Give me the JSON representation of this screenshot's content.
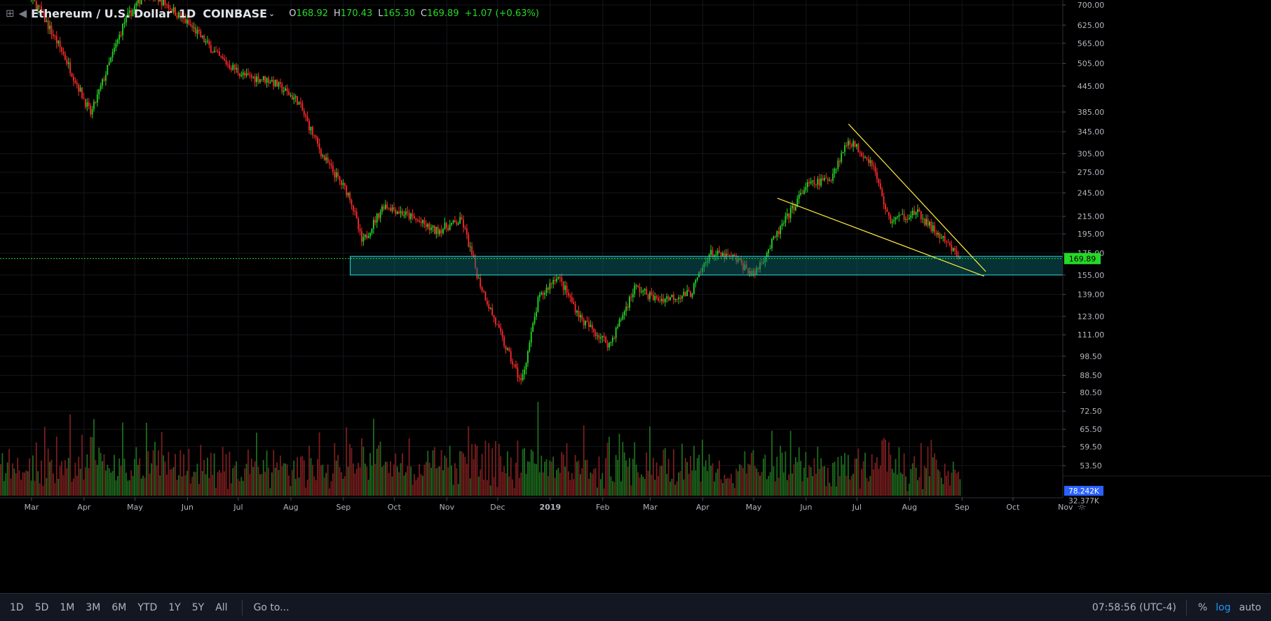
{
  "header": {
    "symbol": "Ethereum / U.S. Dollar",
    "interval": "1D",
    "exchange": "COINBASE",
    "open_label": "O",
    "open": "168.92",
    "high_label": "H",
    "high": "170.43",
    "low_label": "L",
    "low": "165.30",
    "close_label": "C",
    "close": "169.89",
    "change": "+1.07 (+0.63%)",
    "icons": [
      "expand-square-icon",
      "collapse-arrow-icon",
      "chevron-down-icon"
    ]
  },
  "chart_data": {
    "type": "candlestick",
    "y_scale": "log",
    "y_ticks": [
      "700.00",
      "625.00",
      "565.00",
      "505.00",
      "445.00",
      "385.00",
      "345.00",
      "305.00",
      "275.00",
      "245.00",
      "215.00",
      "195.00",
      "175.00",
      "155.00",
      "139.00",
      "123.00",
      "111.00",
      "98.50",
      "88.50",
      "80.50",
      "72.50",
      "65.50",
      "59.50",
      "53.50"
    ],
    "x_ticks": [
      "Mar",
      "Apr",
      "May",
      "Jun",
      "Jul",
      "Aug",
      "Sep",
      "Oct",
      "Nov",
      "Dec",
      "2019",
      "Feb",
      "Mar",
      "Apr",
      "May",
      "Jun",
      "Jul",
      "Aug",
      "Sep",
      "Oct",
      "Nov"
    ],
    "last_price_label": "169.89",
    "volume_label": "78.242K",
    "volume_label_2": "32.377K",
    "price_path": [
      [
        "2018-02-20",
        780
      ],
      [
        "2018-03-05",
        690
      ],
      [
        "2018-03-20",
        530
      ],
      [
        "2018-04-05",
        380
      ],
      [
        "2018-04-25",
        640
      ],
      [
        "2018-05-08",
        760
      ],
      [
        "2018-05-20",
        700
      ],
      [
        "2018-06-05",
        610
      ],
      [
        "2018-06-20",
        520
      ],
      [
        "2018-07-05",
        470
      ],
      [
        "2018-07-20",
        460
      ],
      [
        "2018-08-05",
        410
      ],
      [
        "2018-08-20",
        300
      ],
      [
        "2018-09-05",
        240
      ],
      [
        "2018-09-12",
        185
      ],
      [
        "2018-09-25",
        230
      ],
      [
        "2018-10-10",
        215
      ],
      [
        "2018-10-25",
        198
      ],
      [
        "2018-11-10",
        210
      ],
      [
        "2018-11-20",
        150
      ],
      [
        "2018-12-05",
        105
      ],
      [
        "2018-12-15",
        85
      ],
      [
        "2018-12-25",
        135
      ],
      [
        "2019-01-05",
        155
      ],
      [
        "2019-01-20",
        120
      ],
      [
        "2019-02-05",
        105
      ],
      [
        "2019-02-20",
        145
      ],
      [
        "2019-03-05",
        135
      ],
      [
        "2019-03-25",
        140
      ],
      [
        "2019-04-05",
        175
      ],
      [
        "2019-04-20",
        170
      ],
      [
        "2019-05-01",
        155
      ],
      [
        "2019-05-15",
        195
      ],
      [
        "2019-06-01",
        255
      ],
      [
        "2019-06-15",
        265
      ],
      [
        "2019-06-26",
        330
      ],
      [
        "2019-07-10",
        290
      ],
      [
        "2019-07-20",
        210
      ],
      [
        "2019-08-05",
        220
      ],
      [
        "2019-08-20",
        190
      ],
      [
        "2019-08-31",
        169.89
      ]
    ],
    "support_zone": {
      "low": 155,
      "high": 172,
      "start": "2018-09-05",
      "end": "2019-11-05"
    },
    "trendlines": [
      {
        "name": "descending-resistance",
        "from": [
          "2019-06-26",
          360
        ],
        "to": [
          "2019-09-15",
          158
        ]
      },
      {
        "name": "descending-support",
        "from": [
          "2019-05-15",
          238
        ],
        "to": [
          "2019-09-14",
          154
        ]
      }
    ],
    "current_price": 169.89,
    "colors": {
      "up": "#26d926",
      "down": "#ff2a2a",
      "zone_stroke": "#26d9d9",
      "zone_fill": "#0d6e75",
      "trendline": "#ffeb3b",
      "price_line": "#26d926",
      "label_bg": "#26d926",
      "volume_label_bg": "#2962ff"
    }
  },
  "footer": {
    "ranges": [
      "1D",
      "5D",
      "1M",
      "3M",
      "6M",
      "YTD",
      "1Y",
      "5Y",
      "All"
    ],
    "goto": "Go to...",
    "clock": "07:58:56 (UTC-4)",
    "percent": "%",
    "log": "log",
    "auto": "auto"
  }
}
